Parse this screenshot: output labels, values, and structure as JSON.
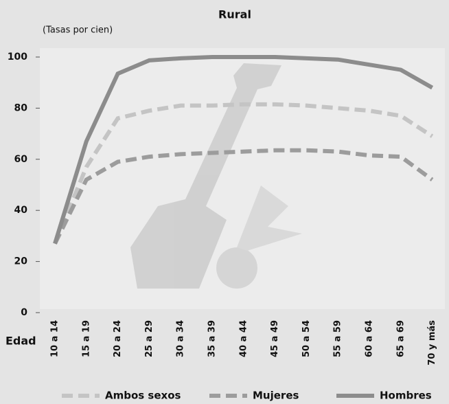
{
  "chart_data": {
    "type": "line",
    "title": "Rural",
    "y_label": "(Tasas por cien)",
    "x_label": "Edad",
    "categories": [
      "10 a 14",
      "15 a 19",
      "20 a 24",
      "25 a 29",
      "30 a 34",
      "35 a 39",
      "40 a 44",
      "45 a 49",
      "50 a 54",
      "55 a 59",
      "60 a 64",
      "65 a 69",
      "70 y más"
    ],
    "series": [
      {
        "name": "Ambos sexos",
        "color": "#c4c4c4",
        "dashed": true,
        "values": [
          27,
          57,
          76,
          79,
          81,
          81,
          81.5,
          81.5,
          81,
          80,
          79,
          77,
          69
        ]
      },
      {
        "name": "Mujeres",
        "color": "#9c9c9c",
        "dashed": true,
        "values": [
          27,
          52,
          59,
          61,
          62,
          62.5,
          63,
          63.5,
          63.5,
          63,
          61.5,
          61,
          52
        ]
      },
      {
        "name": "Hombres",
        "color": "#8c8c8c",
        "dashed": false,
        "values": [
          27,
          67,
          93.5,
          98.7,
          99.5,
          100,
          100,
          100,
          99.5,
          99,
          97,
          95,
          88
        ]
      }
    ],
    "ylim": [
      0,
      100
    ],
    "yticks": [
      0,
      20,
      40,
      60,
      80,
      100
    ],
    "grid": false
  }
}
